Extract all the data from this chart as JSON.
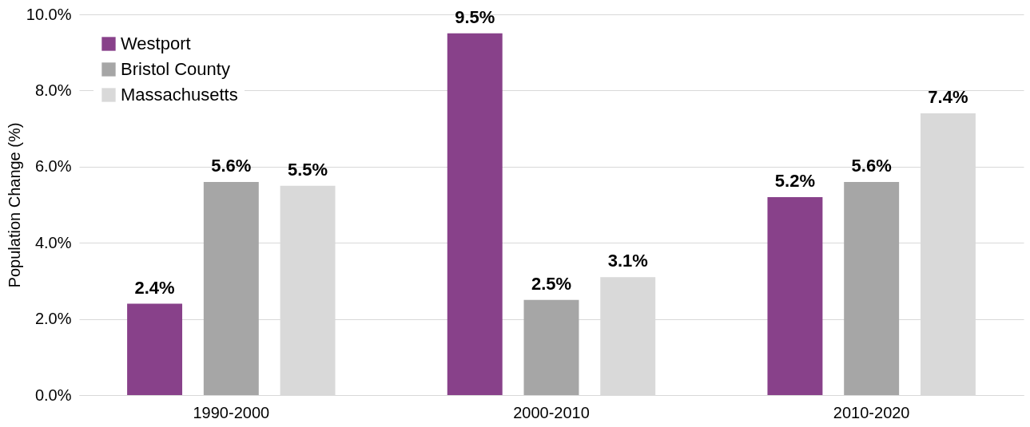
{
  "chart_data": {
    "type": "bar",
    "ylabel": "Population Change (%)",
    "categories": [
      "1990-2000",
      "2000-2010",
      "2010-2020"
    ],
    "series": [
      {
        "name": "Westport",
        "color": "#88418a",
        "values": [
          2.4,
          9.5,
          5.2
        ],
        "value_labels": [
          "2.4%",
          "9.5%",
          "5.2%"
        ]
      },
      {
        "name": "Bristol County",
        "color": "#a6a6a6",
        "values": [
          5.6,
          2.5,
          5.6
        ],
        "value_labels": [
          "5.6%",
          "2.5%",
          "5.6%"
        ]
      },
      {
        "name": "Massachusetts",
        "color": "#d9d9d9",
        "values": [
          5.5,
          3.1,
          7.4
        ],
        "value_labels": [
          "5.5%",
          "3.1%",
          "7.4%"
        ]
      }
    ],
    "ylim": [
      0,
      10
    ],
    "yticks": [
      {
        "value": 0,
        "label": "0.0%"
      },
      {
        "value": 2,
        "label": "2.0%"
      },
      {
        "value": 4,
        "label": "4.0%"
      },
      {
        "value": 6,
        "label": "6.0%"
      },
      {
        "value": 8,
        "label": "8.0%"
      },
      {
        "value": 10,
        "label": "10.0%"
      }
    ],
    "grid": "y",
    "legend": "top left"
  }
}
